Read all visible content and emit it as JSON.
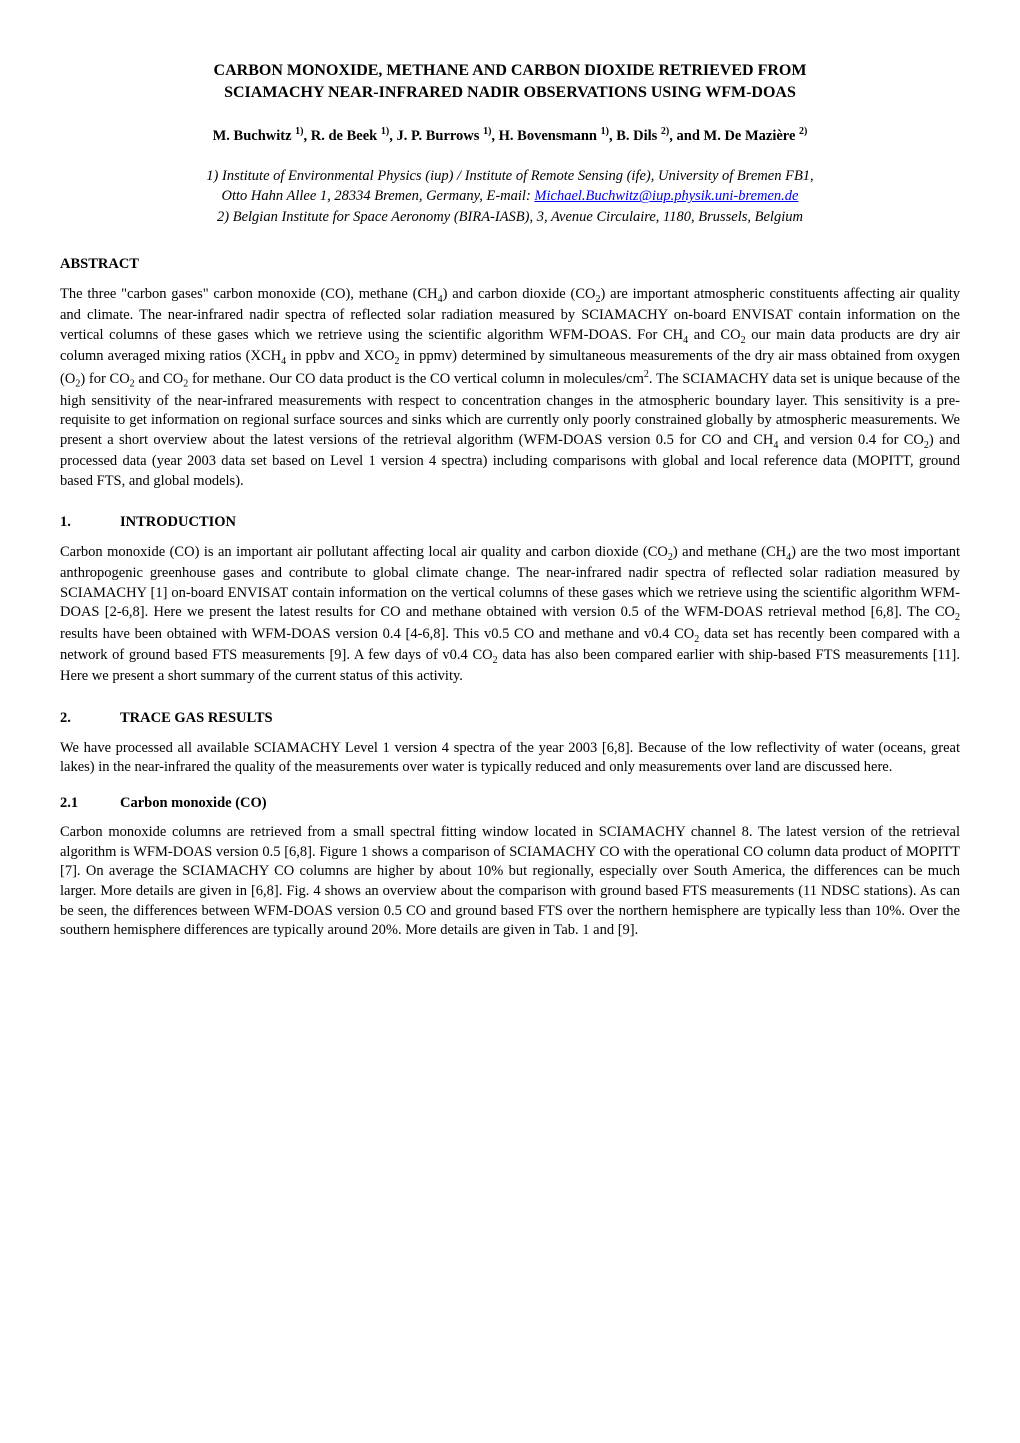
{
  "title_line1": "CARBON MONOXIDE, METHANE AND CARBON DIOXIDE RETRIEVED FROM",
  "title_line2": "SCIAMACHY NEAR-INFRARED NADIR OBSERVATIONS USING WFM-DOAS",
  "authors_prefix": "M. Buchwitz ",
  "authors_sup1": "1)",
  "authors_mid1": ", R.  de Beek ",
  "authors_sup2": "1)",
  "authors_mid2": ", J. P. Burrows ",
  "authors_sup3": "1)",
  "authors_mid3": ", H. Bovensmann ",
  "authors_sup4": "1)",
  "authors_mid4": ", B. Dils ",
  "authors_sup5": "2)",
  "authors_mid5": ", and M. De Mazière ",
  "authors_sup6": "2)",
  "affil1": "1) Institute of Environmental Physics (iup) / Institute of Remote Sensing (ife), University of Bremen FB1,",
  "affil2_prefix": "Otto Hahn Allee 1, 28334 Bremen, Germany, E-mail: ",
  "affil2_email": "Michael.Buchwitz@iup.physik.uni-bremen.de",
  "affil3": "2) Belgian Institute for Space Aeronomy (BIRA-IASB), 3, Avenue Circulaire, 1180, Brussels, Belgium",
  "abstract_heading": "ABSTRACT",
  "abstract_p1a": "The three \"carbon gases\" carbon monoxide (CO), methane (CH",
  "abstract_p1b": ") and carbon dioxide (CO",
  "abstract_p1c": ") are important atmospheric constituents affecting air quality and climate. The near-infrared nadir spectra of reflected solar radiation measured by SCIAMACHY on-board ENVISAT contain information on the vertical columns of these gases which we retrieve using the scientific algorithm WFM-DOAS. For CH",
  "abstract_p1d": " and CO",
  "abstract_p1e": " our main data products are dry air column averaged mixing ratios (XCH",
  "abstract_p1f": " in ppbv and XCO",
  "abstract_p1g": " in ppmv) determined by simultaneous measurements of the dry air mass obtained from oxygen (O",
  "abstract_p1h": ") for CO",
  "abstract_p1i": " and CO",
  "abstract_p1j": " for methane.  Our CO data product is the CO vertical column in molecules/cm",
  "abstract_p1k": ". The SCIAMACHY data set is unique because of the high sensitivity of the near-infrared measurements with respect to concentration changes in the atmospheric boundary layer. This sensitivity is a pre-requisite to get information on regional surface sources and sinks which are currently only poorly constrained globally by atmospheric measurements. We present a short overview about the latest versions of the retrieval algorithm (WFM-DOAS version 0.5 for CO and CH",
  "abstract_p1l": " and version 0.4 for CO",
  "abstract_p1m": ") and processed data (year 2003 data set based on Level 1 version 4 spectra) including comparisons with global and local reference data (MOPITT, ground based FTS, and global models).",
  "section1_num": "1.",
  "section1_heading": "INTRODUCTION",
  "intro_p1a": "Carbon monoxide (CO) is an important air pollutant affecting local air quality and carbon dioxide (CO",
  "intro_p1b": ") and methane (CH",
  "intro_p1c": ") are the two most important anthropogenic greenhouse gases and contribute to global climate change. The near-infrared nadir spectra of reflected solar radiation measured by SCIAMACHY [1] on-board ENVISAT contain information on the vertical columns of these gases which we retrieve using the scientific algorithm WFM-DOAS [2-6,8]. Here we present the latest results for CO and methane obtained with version 0.5 of the WFM-DOAS retrieval method [6,8]. The CO",
  "intro_p1d": " results have been obtained with WFM-DOAS version 0.4 [4-6,8].  This v0.5 CO and methane and v0.4 CO",
  "intro_p1e": " data set has recently been compared with a network of ground based FTS measurements [9]. A few days of  v0.4 CO",
  "intro_p1f": " data has also been compared earlier with ship-based FTS measurements [11]. Here we present a short summary of the current status of this activity.",
  "section2_num": "2.",
  "section2_heading": "TRACE GAS RESULTS",
  "results_p1": "We have processed all available SCIAMACHY Level 1 version 4 spectra of the year 2003 [6,8]. Because of the low reflectivity of water (oceans, great lakes) in the near-infrared the quality of the measurements over water is typically reduced and only measurements over land are discussed here.",
  "subsection21_num": "2.1",
  "subsection21_heading": "Carbon monoxide (CO)",
  "co_p1": "Carbon monoxide columns are retrieved from a small spectral fitting window located in SCIAMACHY channel 8. The latest version of the retrieval algorithm is WFM-DOAS version 0.5 [6,8]. Figure 1 shows a comparison of SCIAMACHY CO with the operational CO column data product of MOPITT [7]. On average the SCIAMACHY CO columns are higher by about 10% but regionally, especially over South America, the differences can be much larger. More details are given in [6,8]. Fig. 4 shows an overview about the comparison with ground based FTS measurements (11 NDSC stations). As can be seen, the differences between WFM-DOAS version 0.5 CO and ground based FTS over the northern hemisphere are typically less than 10%. Over the southern hemisphere differences are typically around 20%. More details are given in Tab. 1 and [9].",
  "sub4": "4",
  "sub2": "2",
  "sup2": "2"
}
